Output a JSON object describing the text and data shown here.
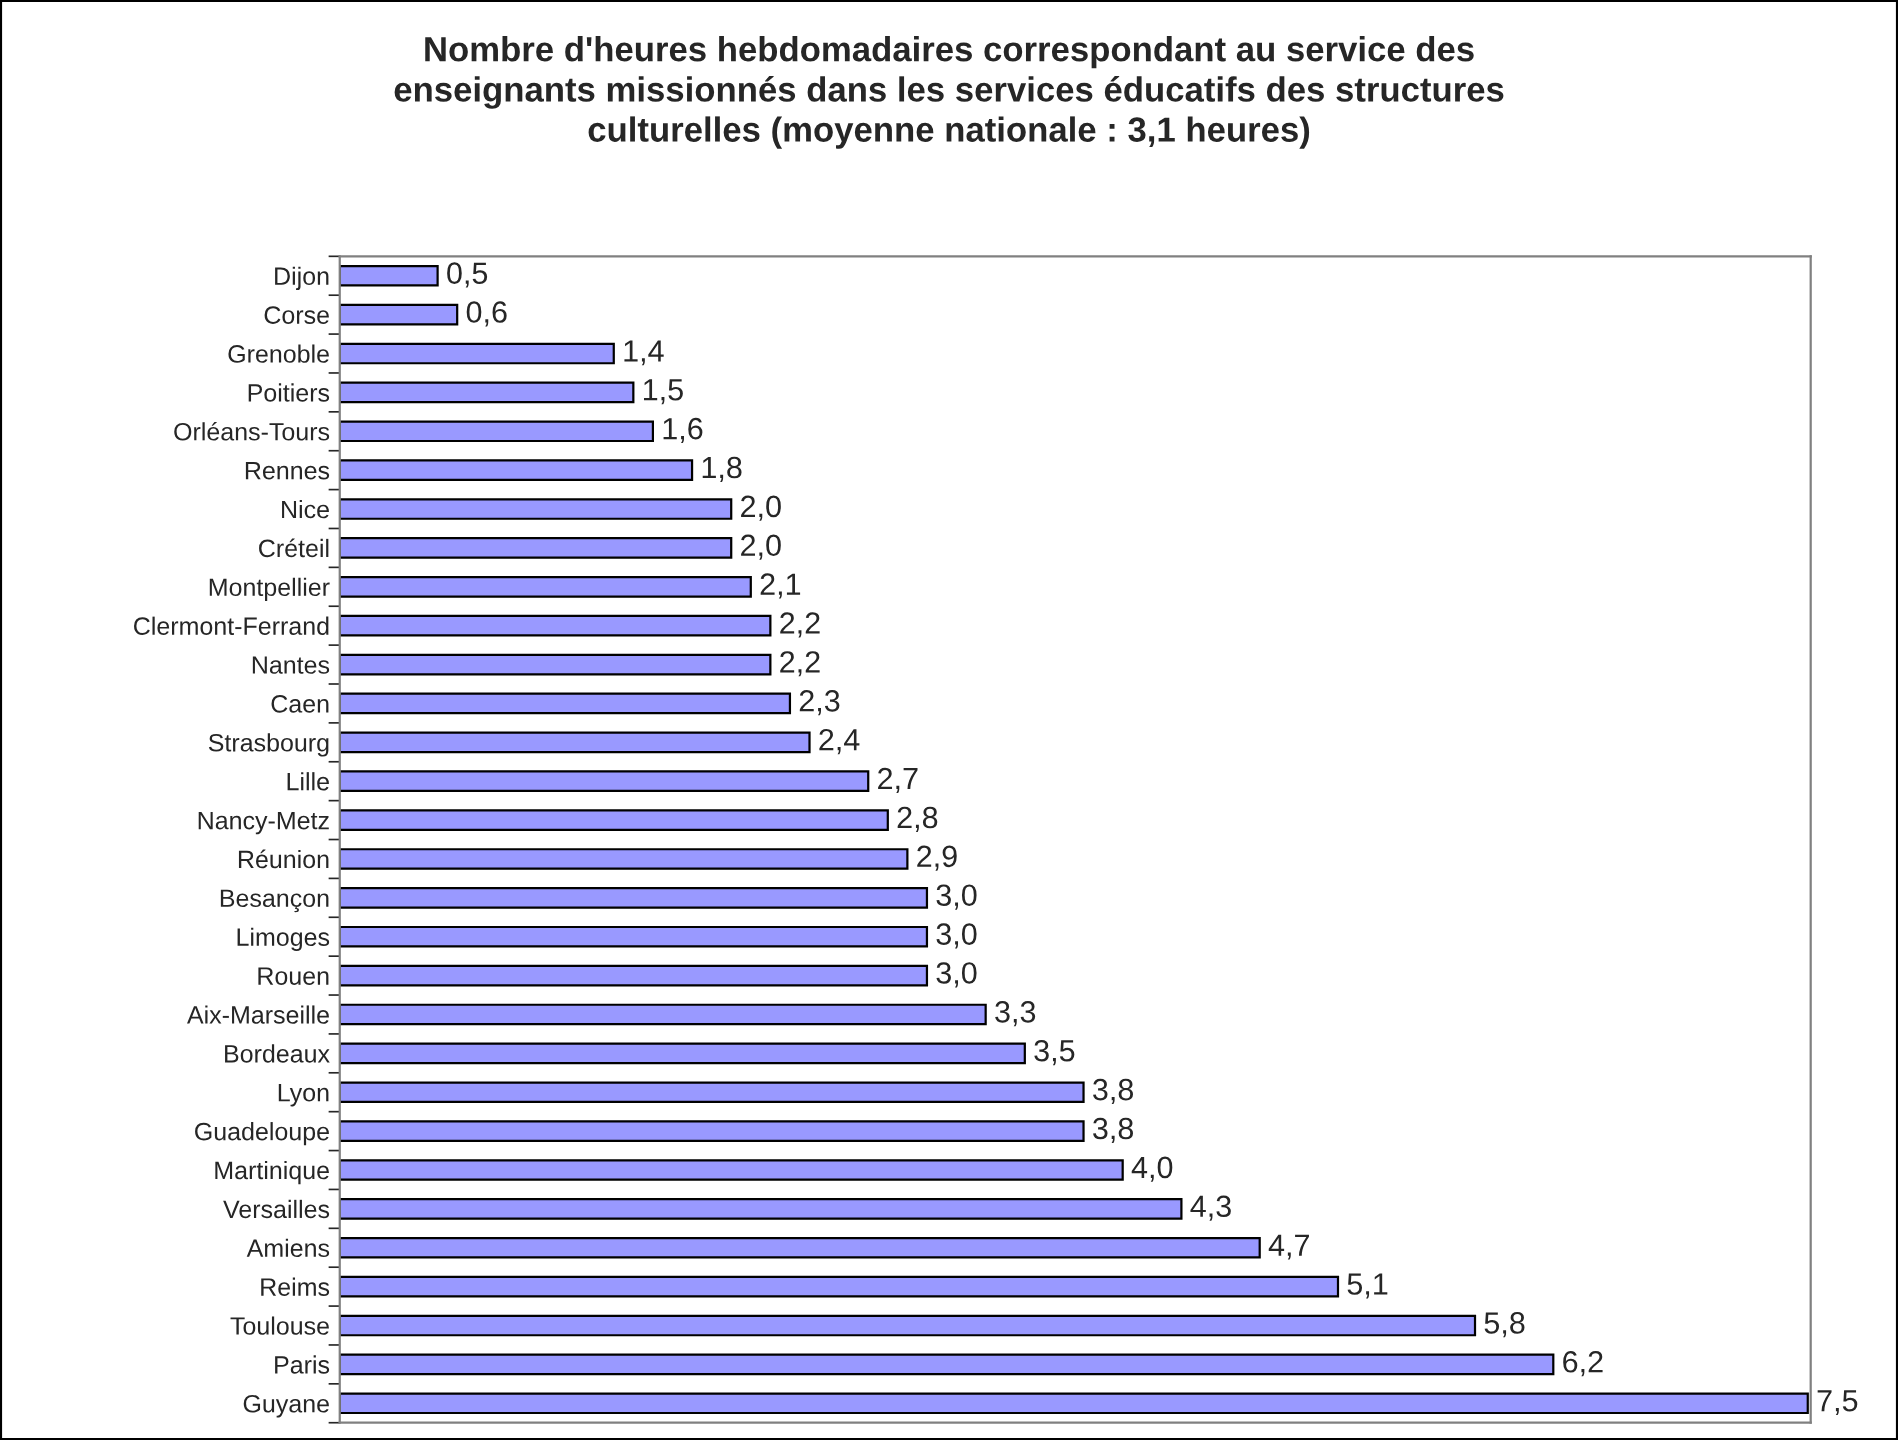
{
  "chart_data": {
    "type": "bar",
    "orientation": "horizontal",
    "title": "Nombre d'heures hebdomadaires correspondant au service des\nenseignants missionnés dans les services éducatifs des structures\nculturelles (moyenne nationale : 3,1 heures)",
    "categories": [
      "Dijon",
      "Corse",
      "Grenoble",
      "Poitiers",
      "Orléans-Tours",
      "Rennes",
      "Nice",
      "Créteil",
      "Montpellier",
      "Clermont-Ferrand",
      "Nantes",
      "Caen",
      "Strasbourg",
      "Lille",
      "Nancy-Metz",
      "Réunion",
      "Besançon",
      "Limoges",
      "Rouen",
      "Aix-Marseille",
      "Bordeaux",
      "Lyon",
      "Guadeloupe",
      "Martinique",
      "Versailles",
      "Amiens",
      "Reims",
      "Toulouse",
      "Paris",
      "Guyane"
    ],
    "values": [
      0.5,
      0.6,
      1.4,
      1.5,
      1.6,
      1.8,
      2.0,
      2.0,
      2.1,
      2.2,
      2.2,
      2.3,
      2.4,
      2.7,
      2.8,
      2.9,
      3.0,
      3.0,
      3.0,
      3.3,
      3.5,
      3.8,
      3.8,
      4.0,
      4.3,
      4.7,
      5.1,
      5.8,
      6.2,
      7.5
    ],
    "value_labels": [
      "0,5",
      "0,6",
      "1,4",
      "1,5",
      "1,6",
      "1,8",
      "2,0",
      "2,0",
      "2,1",
      "2,2",
      "2,2",
      "2,3",
      "2,4",
      "2,7",
      "2,8",
      "2,9",
      "3,0",
      "3,0",
      "3,0",
      "3,3",
      "3,5",
      "3,8",
      "3,8",
      "4,0",
      "4,3",
      "4,7",
      "5,1",
      "5,8",
      "6,2",
      "7,5"
    ],
    "color": "#9999ff",
    "grid": false,
    "legend": false,
    "tick_labels": "y"
  }
}
